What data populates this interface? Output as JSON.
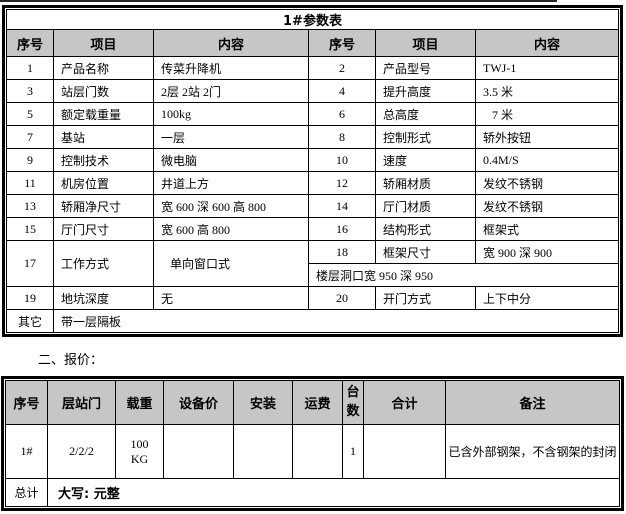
{
  "colors": {
    "header_bg": "#c6c6c6",
    "border": "#000000",
    "page_bg": "#ffffff"
  },
  "section2_label": "二、报价：",
  "table1": {
    "title": "1#参数表",
    "headers": [
      "序号",
      "项目",
      "内容",
      "序号",
      "项目",
      "内容"
    ],
    "rows": [
      {
        "no_l": "1",
        "item_l": "产品名称",
        "val_l": "传菜升降机",
        "no_r": "2",
        "item_r": "产品型号",
        "val_r": "TWJ-1"
      },
      {
        "no_l": "3",
        "item_l": "站层门数",
        "val_l": "2层 2站 2门",
        "no_r": "4",
        "item_r": "提升高度",
        "val_r": "3.5 米"
      },
      {
        "no_l": "5",
        "item_l": "额定载重量",
        "val_l": "100kg",
        "no_r": "6",
        "item_r": "总高度",
        "val_r": "7 米"
      },
      {
        "no_l": "7",
        "item_l": "基站",
        "val_l": "一层",
        "no_r": "8",
        "item_r": "控制形式",
        "val_r": "轿外按钮"
      },
      {
        "no_l": "9",
        "item_l": "控制技术",
        "val_l": "微电脑",
        "no_r": "10",
        "item_r": "速度",
        "val_r": "0.4M/S"
      },
      {
        "no_l": "11",
        "item_l": "机房位置",
        "val_l": "井道上方",
        "no_r": "12",
        "item_r": "轿厢材质",
        "val_r": "发纹不锈钢"
      },
      {
        "no_l": "13",
        "item_l": "轿厢净尺寸",
        "val_l": "宽 600 深 600 高 800",
        "no_r": "14",
        "item_r": "厅门材质",
        "val_r": "发纹不锈钢"
      },
      {
        "no_l": "15",
        "item_l": "厅门尺寸",
        "val_l": "宽 600 高 800",
        "no_r": "16",
        "item_r": "结构形式",
        "val_r": "框架式"
      },
      {
        "no_l": "17",
        "item_l": "工作方式",
        "val_l": "单向窗口式",
        "no_r": "18",
        "item_r": "框架尺寸",
        "val_r": "宽 900 深 900"
      },
      {
        "no_l": "19",
        "item_l": "地坑深度",
        "val_l": "无",
        "no_r": "20",
        "item_r": "开门方式",
        "val_r": "上下中分"
      }
    ],
    "sub_row_value": "楼层洞口宽 950 深 950",
    "other": {
      "label": "其它",
      "value": "带一层隔板"
    }
  },
  "table2": {
    "headers": [
      "序号",
      "层站门",
      "载重",
      "设备价",
      "安装",
      "运费",
      "台数",
      "合计",
      "备注"
    ],
    "row": {
      "no": "1#",
      "stops": "2/2/2",
      "load_line1": "100",
      "load_line2": "KG",
      "equipment_price": "",
      "install": "",
      "shipping": "",
      "qty": "1",
      "total": "",
      "note": "已含外部钢架，不含钢架的封闭"
    },
    "footer": {
      "label": "总计",
      "value": "大写: 元整"
    }
  }
}
